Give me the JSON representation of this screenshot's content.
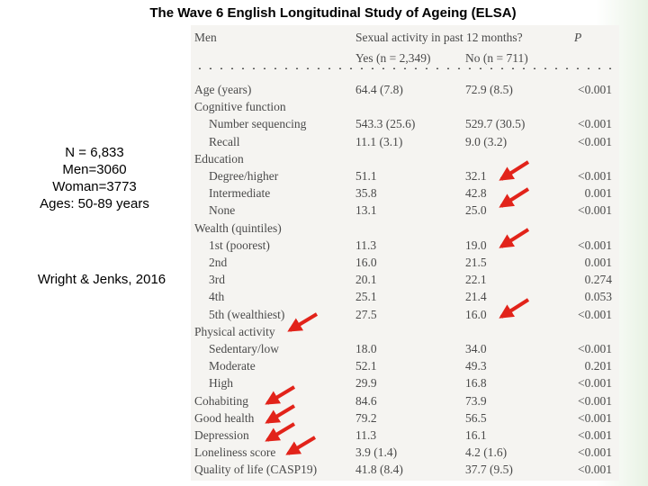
{
  "slide": {
    "title": "The Wave 6 English Longitudinal Study of Ageing (ELSA)",
    "stats": [
      "N = 6,833",
      "Men=3060",
      "Woman=3773",
      "Ages: 50-89 years"
    ],
    "citation": "Wright & Jenks, 2016"
  },
  "table": {
    "group_label": "Men",
    "activity_header": "Sexual activity in past 12 months?",
    "p_header": "P",
    "yes_header": "Yes (n = 2,349)",
    "no_header": "No (n = 711)",
    "rows": [
      {
        "label": "Age (years)",
        "indent": 0,
        "yes": "64.4 (7.8)",
        "no": "72.9 (8.5)",
        "p": "<0.001"
      },
      {
        "label": "Cognitive function",
        "indent": 0,
        "yes": "",
        "no": "",
        "p": ""
      },
      {
        "label": "Number sequencing",
        "indent": 1,
        "yes": "543.3 (25.6)",
        "no": "529.7 (30.5)",
        "p": "<0.001"
      },
      {
        "label": "Recall",
        "indent": 1,
        "yes": "11.1 (3.1)",
        "no": "9.0 (3.2)",
        "p": "<0.001"
      },
      {
        "label": "Education",
        "indent": 0,
        "yes": "",
        "no": "",
        "p": ""
      },
      {
        "label": "Degree/higher",
        "indent": 1,
        "yes": "51.1",
        "no": "32.1",
        "p": "<0.001"
      },
      {
        "label": "Intermediate",
        "indent": 1,
        "yes": "35.8",
        "no": "42.8",
        "p": "0.001"
      },
      {
        "label": "None",
        "indent": 1,
        "yes": "13.1",
        "no": "25.0",
        "p": "<0.001"
      },
      {
        "label": "Wealth (quintiles)",
        "indent": 0,
        "yes": "",
        "no": "",
        "p": ""
      },
      {
        "label": "1st (poorest)",
        "indent": 1,
        "yes": "11.3",
        "no": "19.0",
        "p": "<0.001"
      },
      {
        "label": "2nd",
        "indent": 1,
        "yes": "16.0",
        "no": "21.5",
        "p": "0.001"
      },
      {
        "label": "3rd",
        "indent": 1,
        "yes": "20.1",
        "no": "22.1",
        "p": "0.274"
      },
      {
        "label": "4th",
        "indent": 1,
        "yes": "25.1",
        "no": "21.4",
        "p": "0.053"
      },
      {
        "label": "5th (wealthiest)",
        "indent": 1,
        "yes": "27.5",
        "no": "16.0",
        "p": "<0.001"
      },
      {
        "label": "Physical activity",
        "indent": 0,
        "yes": "",
        "no": "",
        "p": ""
      },
      {
        "label": "Sedentary/low",
        "indent": 1,
        "yes": "18.0",
        "no": "34.0",
        "p": "<0.001"
      },
      {
        "label": "Moderate",
        "indent": 1,
        "yes": "52.1",
        "no": "49.3",
        "p": "0.201"
      },
      {
        "label": "High",
        "indent": 1,
        "yes": "29.9",
        "no": "16.8",
        "p": "<0.001"
      },
      {
        "label": "Cohabiting",
        "indent": 0,
        "yes": "84.6",
        "no": "73.9",
        "p": "<0.001"
      },
      {
        "label": "Good health",
        "indent": 0,
        "yes": "79.2",
        "no": "56.5",
        "p": "<0.001"
      },
      {
        "label": "Depression",
        "indent": 0,
        "yes": "11.3",
        "no": "16.1",
        "p": "<0.001"
      },
      {
        "label": "Loneliness score",
        "indent": 0,
        "yes": "3.9 (1.4)",
        "no": "4.2 (1.6)",
        "p": "<0.001"
      },
      {
        "label": "Quality of life (CASP19)",
        "indent": 0,
        "yes": "41.8 (8.4)",
        "no": "37.7 (9.5)",
        "p": "<0.001"
      }
    ]
  },
  "colors": {
    "arrow": "#e2231a",
    "text": "#4a4a4a",
    "panel": "#f5f4f1"
  }
}
